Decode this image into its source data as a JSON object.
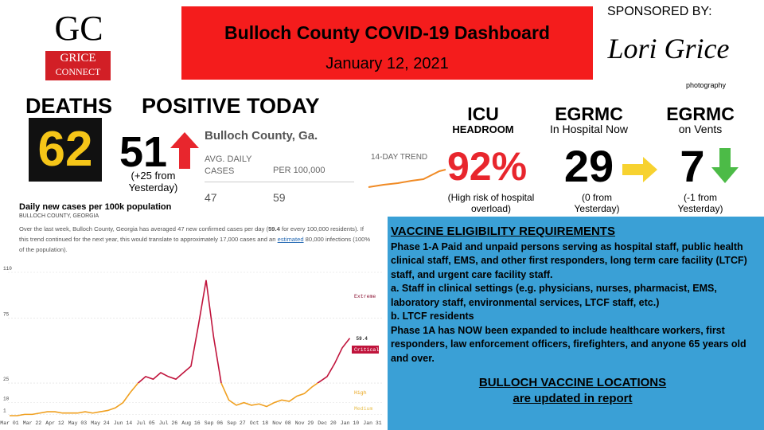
{
  "header": {
    "title": "Bulloch County COVID-19 Dashboard",
    "date": "January 12, 2021"
  },
  "logo": {
    "initials": "GC",
    "line1": "GRICE",
    "line2": "CONNECT"
  },
  "sponsor": {
    "label": "SPONSORED BY:",
    "name": "Lori Grice",
    "tagline": "photography"
  },
  "deaths": {
    "label": "DEATHS",
    "value": 62
  },
  "positive_today": {
    "label": "POSITIVE TODAY",
    "value": 51,
    "note": [
      "(+25 from",
      "Yesterday)"
    ]
  },
  "county_card": {
    "title": "Bulloch County, Ga.",
    "col1": [
      "AVG. DAILY",
      "CASES"
    ],
    "col2": "PER 100,000",
    "avg_daily": 47,
    "per_100k": 59,
    "trend_label": "14-DAY TREND"
  },
  "icu": {
    "label": "ICU",
    "sublabel": "HEADROOM",
    "value": "92%",
    "note": [
      "(High risk of hospital",
      "overload)"
    ]
  },
  "egrmc_hospital": {
    "label": "EGRMC",
    "sublabel": "In Hospital Now",
    "value": 29,
    "note": [
      "(0 from",
      "Yesterday)"
    ]
  },
  "egrmc_vents": {
    "label": "EGRMC",
    "sublabel": "on Vents",
    "value": 7,
    "note": [
      "(-1 from",
      "Yesterday)"
    ]
  },
  "chart_info": {
    "title": "Daily new cases per 100k population",
    "subtitle": "BULLOCH COUNTY, GEORGIA",
    "description": [
      "Over the last week, Bulloch County, Georgia has averaged 47 new confirmed cases per day (",
      "59.4",
      " for every 100,000 residents). If this trend continued for the next year, this would translate to approximately 17,000 cases and an ",
      "estimated",
      " 80,000 infections (100% of the population)."
    ]
  },
  "chart_data": {
    "type": "line",
    "categories": [
      "Mar 01",
      null,
      null,
      "Mar 22",
      null,
      null,
      "Apr 12",
      null,
      null,
      "May 03",
      null,
      null,
      "May 24",
      null,
      null,
      "Jun 14",
      null,
      null,
      "Jul 05",
      null,
      null,
      "Jul 26",
      null,
      null,
      "Aug 16",
      null,
      null,
      "Sep 06",
      null,
      null,
      "Sep 27",
      null,
      null,
      "Oct 18",
      null,
      null,
      "Nov 08",
      null,
      null,
      "Nov 29",
      null,
      null,
      "Dec 20",
      null,
      null,
      "Jan 10",
      null,
      null,
      "Jan 31"
    ],
    "values": [
      0,
      0,
      1,
      1,
      2,
      3,
      3,
      2,
      2,
      2,
      3,
      2,
      3,
      4,
      6,
      10,
      18,
      25,
      30,
      28,
      33,
      30,
      28,
      33,
      38,
      70,
      104,
      60,
      25,
      12,
      8,
      10,
      8,
      9,
      7,
      10,
      12,
      11,
      15,
      17,
      22,
      26,
      30,
      40,
      52,
      59.4,
      null,
      null,
      null
    ],
    "color": "#f0a020",
    "color_high": "#c0143c",
    "ylim": [
      0,
      110
    ],
    "yticks": [
      1,
      10,
      25,
      75,
      110
    ],
    "grid": true,
    "annotations": [
      "Extreme",
      "Critical",
      "High",
      "Medium"
    ]
  },
  "vaccine": {
    "heading": "VACCINE ELIGIBILITY REQUIREMENTS",
    "paragraphs": [
      "Phase 1-A Paid and unpaid persons serving as hospital staff, public health clinical staff, EMS, and other first responders, long term care facility (LTCF) staff, and urgent care facility staff.",
      "a. Staff in clinical settings (e.g. physicians, nurses, pharmacist, EMS, laboratory staff, environmental services, LTCF staff, etc.)",
      "b. LTCF residents",
      "Phase 1A has NOW been expanded to include healthcare workers, first responders, law enforcement officers, firefighters, and anyone 65 years old and over."
    ],
    "footer": [
      "BULLOCH VACCINE LOCATIONS",
      "are updated in report"
    ]
  }
}
